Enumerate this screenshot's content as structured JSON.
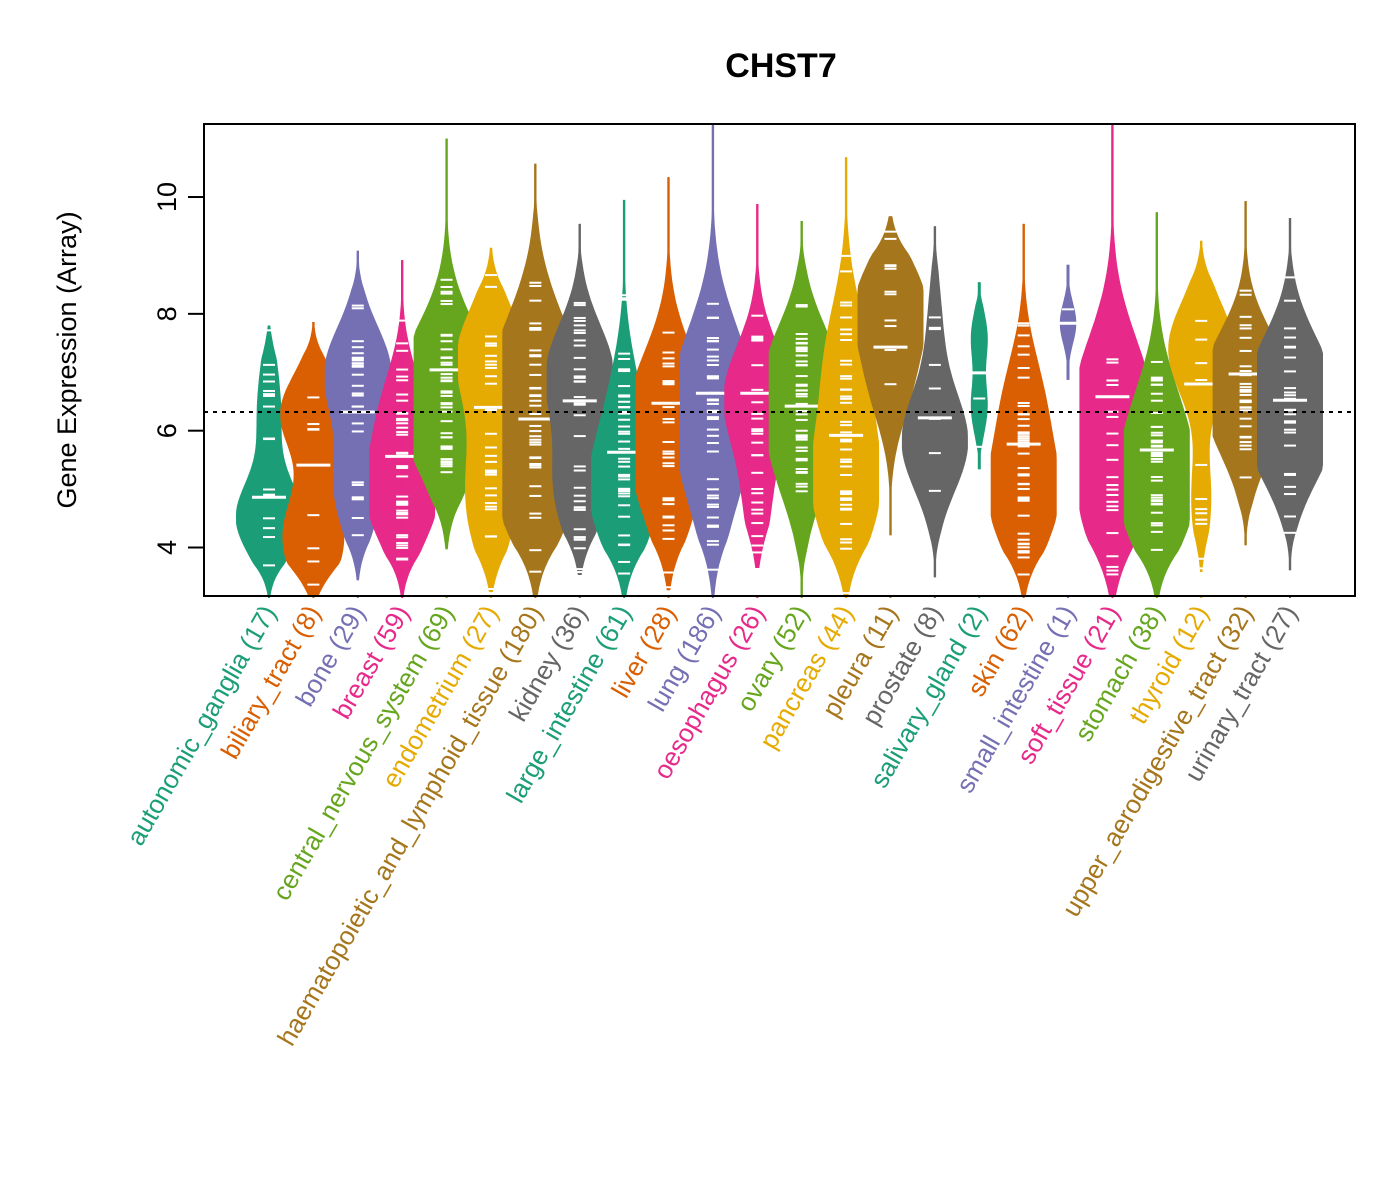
{
  "chart_data": {
    "type": "violin",
    "title": "CHST7",
    "xlabel": "",
    "ylabel": "Gene Expression (Array)",
    "ylim": [
      3.17,
      11.25
    ],
    "yticks": [
      4,
      6,
      8,
      10
    ],
    "grid": false,
    "legend": "none",
    "reference_line": {
      "value": 6.32,
      "style": "dotted",
      "color": "#000000"
    },
    "categories": [
      {
        "name": "autonomic_ganglia",
        "n": 17,
        "label": "autonomic_ganglia (17)",
        "color": "#1B9E77",
        "min": 3.17,
        "max": 7.8,
        "median": 4.86,
        "modes": [
          [
            4.5,
            1.0
          ],
          [
            6.2,
            0.3
          ],
          [
            7.2,
            0.15
          ]
        ]
      },
      {
        "name": "biliary_tract",
        "n": 8,
        "label": "biliary_tract (8)",
        "color": "#D95F02",
        "min": 3.17,
        "max": 7.86,
        "median": 5.41,
        "modes": [
          [
            6.3,
            1.0
          ],
          [
            4.4,
            0.7
          ],
          [
            3.6,
            0.4
          ]
        ]
      },
      {
        "name": "bone",
        "n": 29,
        "label": "bone (29)",
        "color": "#7570B3",
        "min": 3.44,
        "max": 9.08,
        "median": 6.32,
        "modes": [
          [
            7.0,
            1.0
          ],
          [
            5.0,
            0.7
          ]
        ]
      },
      {
        "name": "breast",
        "n": 59,
        "label": "breast (59)",
        "color": "#E7298A",
        "min": 3.17,
        "max": 8.92,
        "median": 5.56,
        "modes": [
          [
            4.8,
            1.0
          ],
          [
            6.3,
            0.6
          ]
        ]
      },
      {
        "name": "central_nervous_system",
        "n": 69,
        "label": "central_nervous_system (69)",
        "color": "#66A61E",
        "min": 3.97,
        "max": 11.0,
        "median": 7.04,
        "modes": [
          [
            7.0,
            1.0
          ],
          [
            6.0,
            0.8
          ]
        ]
      },
      {
        "name": "endometrium",
        "n": 27,
        "label": "endometrium (27)",
        "color": "#E6AB02",
        "min": 3.24,
        "max": 9.13,
        "median": 6.4,
        "modes": [
          [
            7.3,
            1.0
          ],
          [
            4.5,
            0.55
          ],
          [
            5.6,
            0.4
          ]
        ]
      },
      {
        "name": "haematopoietic_and_lymphoid_tissue",
        "n": 180,
        "label": "haematopoietic_and_lymphoid_tissue (180)",
        "color": "#A6761D",
        "min": 3.17,
        "max": 10.57,
        "median": 6.2,
        "modes": [
          [
            6.3,
            1.0
          ],
          [
            5.0,
            0.9
          ],
          [
            7.5,
            0.6
          ]
        ]
      },
      {
        "name": "kidney",
        "n": 36,
        "label": "kidney (36)",
        "color": "#666666",
        "min": 3.53,
        "max": 9.54,
        "median": 6.51,
        "modes": [
          [
            7.0,
            1.0
          ],
          [
            5.0,
            0.75
          ]
        ]
      },
      {
        "name": "large_intestine",
        "n": 61,
        "label": "large_intestine (61)",
        "color": "#1B9E77",
        "min": 3.17,
        "max": 9.95,
        "median": 5.63,
        "modes": [
          [
            4.9,
            1.0
          ],
          [
            6.5,
            0.35
          ]
        ]
      },
      {
        "name": "liver",
        "n": 28,
        "label": "liver (28)",
        "color": "#D95F02",
        "min": 3.27,
        "max": 10.34,
        "median": 6.47,
        "modes": [
          [
            6.5,
            1.0
          ],
          [
            5.0,
            0.7
          ]
        ]
      },
      {
        "name": "lung",
        "n": 186,
        "label": "lung (186)",
        "color": "#7570B3",
        "min": 3.17,
        "max": 11.25,
        "median": 6.64,
        "modes": [
          [
            6.8,
            1.0
          ],
          [
            5.2,
            0.6
          ]
        ]
      },
      {
        "name": "oesophagus",
        "n": 26,
        "label": "oesophagus (26)",
        "color": "#E7298A",
        "min": 3.65,
        "max": 9.88,
        "median": 6.64,
        "modes": [
          [
            6.6,
            1.0
          ],
          [
            4.7,
            0.35
          ]
        ]
      },
      {
        "name": "ovary",
        "n": 52,
        "label": "ovary (52)",
        "color": "#66A61E",
        "min": 3.17,
        "max": 9.59,
        "median": 6.42,
        "modes": [
          [
            7.0,
            1.0
          ],
          [
            5.5,
            0.7
          ]
        ]
      },
      {
        "name": "pancreas",
        "n": 44,
        "label": "pancreas (44)",
        "color": "#E6AB02",
        "min": 3.17,
        "max": 10.68,
        "median": 5.92,
        "modes": [
          [
            5.0,
            1.0
          ],
          [
            7.2,
            0.6
          ]
        ]
      },
      {
        "name": "pleura",
        "n": 11,
        "label": "pleura (11)",
        "color": "#A6761D",
        "min": 4.21,
        "max": 9.67,
        "median": 7.43,
        "modes": [
          [
            8.2,
            1.0
          ],
          [
            6.8,
            0.55
          ]
        ]
      },
      {
        "name": "prostate",
        "n": 8,
        "label": "prostate (8)",
        "color": "#666666",
        "min": 3.49,
        "max": 9.5,
        "median": 6.22,
        "modes": [
          [
            5.8,
            1.0
          ],
          [
            7.8,
            0.2
          ]
        ]
      },
      {
        "name": "salivary_gland",
        "n": 2,
        "label": "salivary_gland (2)",
        "color": "#1B9E77",
        "min": 5.34,
        "max": 8.54,
        "median": 6.99,
        "modes": [
          [
            7.6,
            1.0
          ],
          [
            6.4,
            1.0
          ]
        ]
      },
      {
        "name": "skin",
        "n": 62,
        "label": "skin (62)",
        "color": "#D95F02",
        "min": 3.17,
        "max": 9.54,
        "median": 5.77,
        "modes": [
          [
            4.8,
            1.0
          ],
          [
            6.5,
            0.55
          ]
        ]
      },
      {
        "name": "small_intestine",
        "n": 1,
        "label": "small_intestine (1)",
        "color": "#7570B3",
        "min": 6.87,
        "max": 8.84,
        "median": 7.84,
        "modes": [
          [
            7.84,
            1.0
          ]
        ]
      },
      {
        "name": "soft_tissue",
        "n": 21,
        "label": "soft_tissue (21)",
        "color": "#E7298A",
        "min": 3.17,
        "max": 11.25,
        "median": 6.58,
        "modes": [
          [
            6.6,
            1.0
          ],
          [
            4.8,
            0.8
          ]
        ]
      },
      {
        "name": "stomach",
        "n": 38,
        "label": "stomach (38)",
        "color": "#66A61E",
        "min": 3.17,
        "max": 9.74,
        "median": 5.67,
        "modes": [
          [
            4.8,
            1.0
          ],
          [
            6.2,
            0.6
          ]
        ]
      },
      {
        "name": "thyroid",
        "n": 12,
        "label": "thyroid (12)",
        "color": "#E6AB02",
        "min": 3.58,
        "max": 9.25,
        "median": 6.8,
        "modes": [
          [
            7.4,
            1.0
          ],
          [
            4.8,
            0.3
          ]
        ]
      },
      {
        "name": "upper_aerodigestive_tract",
        "n": 32,
        "label": "upper_aerodigestive_tract (32)",
        "color": "#A6761D",
        "min": 4.04,
        "max": 9.93,
        "median": 6.97,
        "modes": [
          [
            7.0,
            1.0
          ],
          [
            6.0,
            0.6
          ]
        ]
      },
      {
        "name": "urinary_tract",
        "n": 27,
        "label": "urinary_tract (27)",
        "color": "#666666",
        "min": 3.61,
        "max": 9.64,
        "median": 6.52,
        "modes": [
          [
            7.0,
            0.9
          ],
          [
            5.8,
            1.0
          ]
        ]
      }
    ]
  }
}
